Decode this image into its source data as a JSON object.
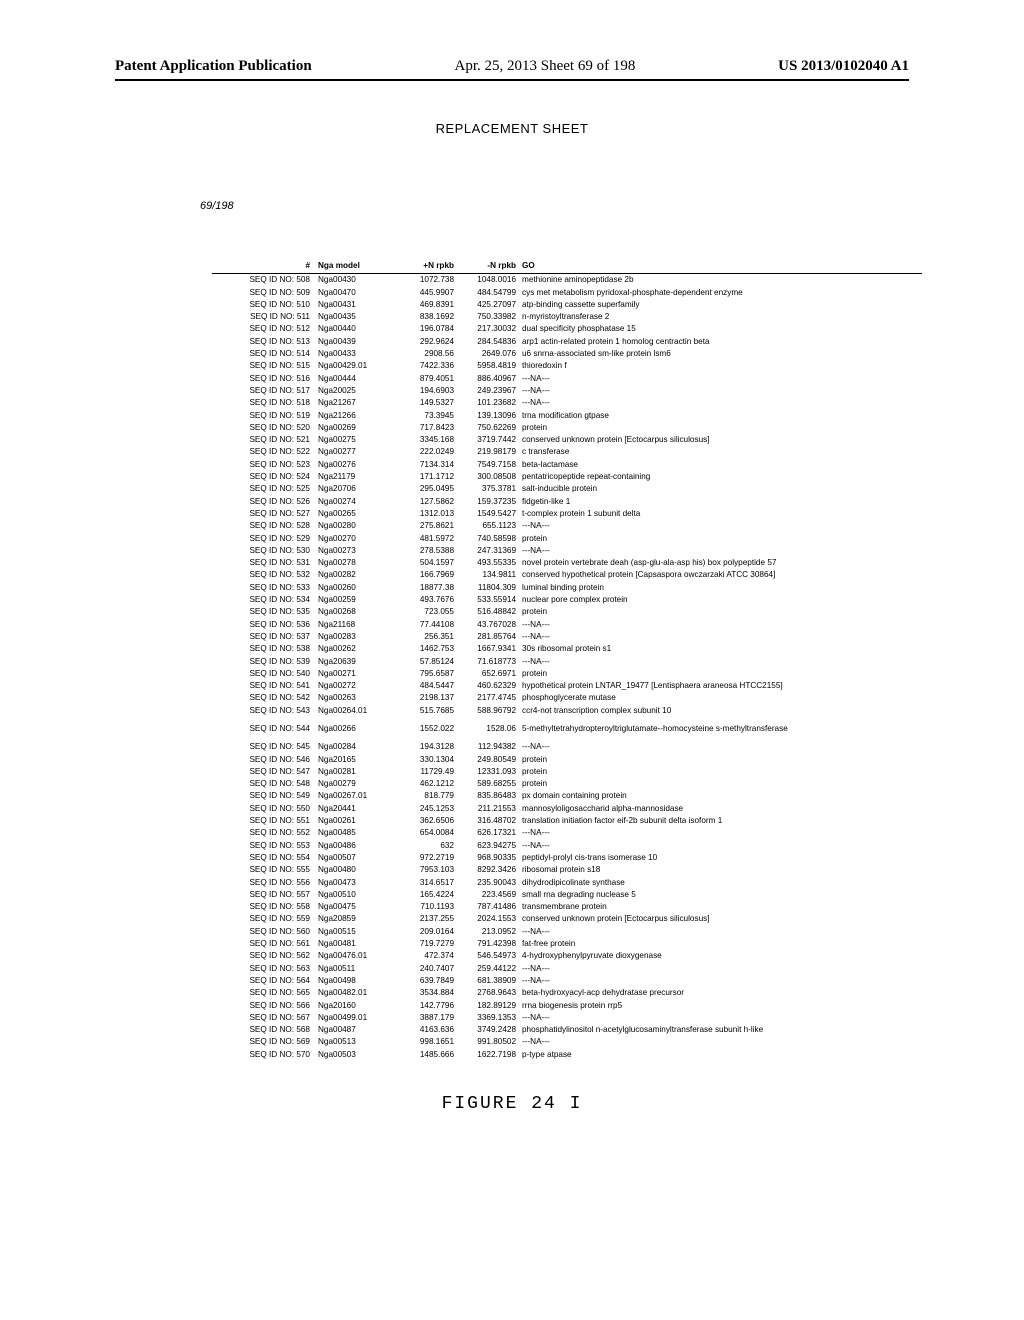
{
  "header": {
    "left": "Patent Application Publication",
    "mid": "Apr. 25, 2013  Sheet 69 of 198",
    "right": "US 2013/0102040 A1"
  },
  "replacement": "REPLACEMENT SHEET",
  "sheetnum": "69/198",
  "figure": "FIGURE 24 I",
  "thead": {
    "seq": "#",
    "model": "Nga model",
    "n1": "+N rpkb",
    "n2": "-N rpkb",
    "go": "GO"
  },
  "rows": [
    {
      "seq": "SEQ ID NO: 508",
      "model": "Nga00430",
      "n1": "1072.738",
      "n2": "1048.0016",
      "go": "methionine aminopeptidase 2b"
    },
    {
      "seq": "SEQ ID NO: 509",
      "model": "Nga00470",
      "n1": "445.9907",
      "n2": "484.54799",
      "go": "cys met metabolism pyridoxal-phosphate-dependent enzyme"
    },
    {
      "seq": "SEQ ID NO: 510",
      "model": "Nga00431",
      "n1": "469.8391",
      "n2": "425.27097",
      "go": "atp-binding cassette superfamily"
    },
    {
      "seq": "SEQ ID NO: 511",
      "model": "Nga00435",
      "n1": "838.1692",
      "n2": "750.33982",
      "go": "n-myristoyltransferase 2"
    },
    {
      "seq": "SEQ ID NO: 512",
      "model": "Nga00440",
      "n1": "196.0784",
      "n2": "217.30032",
      "go": "dual specificity phosphatase 15"
    },
    {
      "seq": "SEQ ID NO: 513",
      "model": "Nga00439",
      "n1": "292.9624",
      "n2": "284.54836",
      "go": "arp1 actin-related protein 1 homolog centractin beta"
    },
    {
      "seq": "SEQ ID NO: 514",
      "model": "Nga00433",
      "n1": "2908.56",
      "n2": "2649.076",
      "go": "u6 snrna-associated sm-like protein lsm6"
    },
    {
      "seq": "SEQ ID NO: 515",
      "model": "Nga00429.01",
      "n1": "7422.336",
      "n2": "5958.4819",
      "go": "thioredoxin f"
    },
    {
      "seq": "SEQ ID NO: 516",
      "model": "Nga00444",
      "n1": "879.4051",
      "n2": "886.40967",
      "go": "---NA---"
    },
    {
      "seq": "SEQ ID NO: 517",
      "model": "Nga20025",
      "n1": "194.6903",
      "n2": "249.23967",
      "go": "---NA---"
    },
    {
      "seq": "SEQ ID NO: 518",
      "model": "Nga21267",
      "n1": "149.5327",
      "n2": "101.23682",
      "go": "---NA---"
    },
    {
      "seq": "SEQ ID NO: 519",
      "model": "Nga21266",
      "n1": "73.3945",
      "n2": "139.13096",
      "go": "trna modification gtpase"
    },
    {
      "seq": "SEQ ID NO: 520",
      "model": "Nga00269",
      "n1": "717.8423",
      "n2": "750.62269",
      "go": "protein"
    },
    {
      "seq": "SEQ ID NO: 521",
      "model": "Nga00275",
      "n1": "3345.168",
      "n2": "3719.7442",
      "go": "conserved unknown protein [Ectocarpus siliculosus]"
    },
    {
      "seq": "SEQ ID NO: 522",
      "model": "Nga00277",
      "n1": "222.0249",
      "n2": "219.98179",
      "go": "c transferase"
    },
    {
      "seq": "SEQ ID NO: 523",
      "model": "Nga00276",
      "n1": "7134.314",
      "n2": "7549.7158",
      "go": "beta-lactamase"
    },
    {
      "seq": "SEQ ID NO: 524",
      "model": "Nga21179",
      "n1": "171.1712",
      "n2": "300.08508",
      "go": "pentatricopeptide repeat-containing"
    },
    {
      "seq": "SEQ ID NO: 525",
      "model": "Nga20706",
      "n1": "295.0495",
      "n2": "375.3781",
      "go": "salt-inducible protein"
    },
    {
      "seq": "SEQ ID NO: 526",
      "model": "Nga00274",
      "n1": "127.5862",
      "n2": "159.37235",
      "go": "fidgetin-like 1"
    },
    {
      "seq": "SEQ ID NO: 527",
      "model": "Nga00265",
      "n1": "1312.013",
      "n2": "1549.5427",
      "go": "t-complex protein 1 subunit delta"
    },
    {
      "seq": "SEQ ID NO: 528",
      "model": "Nga00280",
      "n1": "275.8621",
      "n2": "655.1123",
      "go": "---NA---"
    },
    {
      "seq": "SEQ ID NO: 529",
      "model": "Nga00270",
      "n1": "481.5972",
      "n2": "740.58598",
      "go": "protein"
    },
    {
      "seq": "SEQ ID NO: 530",
      "model": "Nga00273",
      "n1": "278.5388",
      "n2": "247.31369",
      "go": "---NA---"
    },
    {
      "seq": "SEQ ID NO: 531",
      "model": "Nga00278",
      "n1": "504.1597",
      "n2": "493.55335",
      "go": "novel protein vertebrate deah (asp-glu-ala-asp his) box polypeptide 57"
    },
    {
      "seq": "SEQ ID NO: 532",
      "model": "Nga00282",
      "n1": "166.7969",
      "n2": "134.9811",
      "go": "conserved hypothetical protein [Capsaspora owczarzaki ATCC 30864]"
    },
    {
      "seq": "SEQ ID NO: 533",
      "model": "Nga00260",
      "n1": "18877.38",
      "n2": "11804.309",
      "go": "luminal binding protein"
    },
    {
      "seq": "SEQ ID NO: 534",
      "model": "Nga00259",
      "n1": "493.7676",
      "n2": "533.55914",
      "go": "nuclear pore complex protein"
    },
    {
      "seq": "SEQ ID NO: 535",
      "model": "Nga00268",
      "n1": "723.055",
      "n2": "516.48842",
      "go": "protein"
    },
    {
      "seq": "SEQ ID NO: 536",
      "model": "Nga21168",
      "n1": "77.44108",
      "n2": "43.767028",
      "go": "---NA---"
    },
    {
      "seq": "SEQ ID NO: 537",
      "model": "Nga00283",
      "n1": "256.351",
      "n2": "281.85764",
      "go": "---NA---"
    },
    {
      "seq": "SEQ ID NO: 538",
      "model": "Nga00262",
      "n1": "1462.753",
      "n2": "1667.9341",
      "go": "30s ribosomal protein s1"
    },
    {
      "seq": "SEQ ID NO: 539",
      "model": "Nga20639",
      "n1": "57.85124",
      "n2": "71.618773",
      "go": "---NA---"
    },
    {
      "seq": "SEQ ID NO: 540",
      "model": "Nga00271",
      "n1": "795.6587",
      "n2": "652.6971",
      "go": "protein"
    },
    {
      "seq": "SEQ ID NO: 541",
      "model": "Nga00272",
      "n1": "484.5447",
      "n2": "460.62329",
      "go": "hypothetical protein LNTAR_19477 [Lentisphaera araneosa HTCC2155]"
    },
    {
      "seq": "SEQ ID NO: 542",
      "model": "Nga00263",
      "n1": "2198.137",
      "n2": "2177.4745",
      "go": "phosphoglycerate mutase"
    },
    {
      "seq": "SEQ ID NO: 543",
      "model": "Nga00264.01",
      "n1": "515.7685",
      "n2": "588.96792",
      "go": "ccr4-not transcription complex subunit 10"
    },
    {
      "seq": "SEQ ID NO: 544",
      "model": "Nga00266",
      "n1": "1552.022",
      "n2": "1528.06",
      "go": "5-methyltetrahydropteroyltriglutamate--homocysteine s-methyltransferase",
      "gap": true
    },
    {
      "seq": "SEQ ID NO: 545",
      "model": "Nga00284",
      "n1": "194.3128",
      "n2": "112.94382",
      "go": "---NA---"
    },
    {
      "seq": "SEQ ID NO: 546",
      "model": "Nga20165",
      "n1": "330.1304",
      "n2": "249.80549",
      "go": "protein"
    },
    {
      "seq": "SEQ ID NO: 547",
      "model": "Nga00281",
      "n1": "11729.49",
      "n2": "12331.093",
      "go": "protein"
    },
    {
      "seq": "SEQ ID NO: 548",
      "model": "Nga00279",
      "n1": "462.1212",
      "n2": "589.68255",
      "go": "protein"
    },
    {
      "seq": "SEQ ID NO: 549",
      "model": "Nga00267.01",
      "n1": "818.779",
      "n2": "835.86483",
      "go": "px domain containing protein"
    },
    {
      "seq": "SEQ ID NO: 550",
      "model": "Nga20441",
      "n1": "245.1253",
      "n2": "211.21553",
      "go": "mannosyloligosaccharid alpha-mannosidase"
    },
    {
      "seq": "SEQ ID NO: 551",
      "model": "Nga00261",
      "n1": "362.6506",
      "n2": "316.48702",
      "go": "translation initiation factor eif-2b subunit delta isoform 1"
    },
    {
      "seq": "SEQ ID NO: 552",
      "model": "Nga00485",
      "n1": "654.0084",
      "n2": "626.17321",
      "go": "---NA---"
    },
    {
      "seq": "SEQ ID NO: 553",
      "model": "Nga00486",
      "n1": "632",
      "n2": "623.94275",
      "go": "---NA---"
    },
    {
      "seq": "SEQ ID NO: 554",
      "model": "Nga00507",
      "n1": "972.2719",
      "n2": "968.90335",
      "go": "peptidyl-prolyl cis-trans isomerase 10"
    },
    {
      "seq": "SEQ ID NO: 555",
      "model": "Nga00480",
      "n1": "7953.103",
      "n2": "8292.3426",
      "go": "ribosomal protein s18"
    },
    {
      "seq": "SEQ ID NO: 556",
      "model": "Nga00473",
      "n1": "314.6517",
      "n2": "235.90043",
      "go": "dihydrodipicolinate synthase"
    },
    {
      "seq": "SEQ ID NO: 557",
      "model": "Nga00510",
      "n1": "165.4224",
      "n2": "223.4569",
      "go": "small rna degrading nuclease 5"
    },
    {
      "seq": "SEQ ID NO: 558",
      "model": "Nga00475",
      "n1": "710.1193",
      "n2": "787.41486",
      "go": "transmembrane protein"
    },
    {
      "seq": "SEQ ID NO: 559",
      "model": "Nga20859",
      "n1": "2137.255",
      "n2": "2024.1553",
      "go": "conserved unknown protein [Ectocarpus siliculosus]"
    },
    {
      "seq": "SEQ ID NO: 560",
      "model": "Nga00515",
      "n1": "209.0164",
      "n2": "213.0952",
      "go": "---NA---"
    },
    {
      "seq": "SEQ ID NO: 561",
      "model": "Nga00481",
      "n1": "719.7279",
      "n2": "791.42398",
      "go": "fat-free protein"
    },
    {
      "seq": "SEQ ID NO: 562",
      "model": "Nga00476.01",
      "n1": "472.374",
      "n2": "546.54973",
      "go": "4-hydroxyphenylpyruvate dioxygenase"
    },
    {
      "seq": "SEQ ID NO: 563",
      "model": "Nga00511",
      "n1": "240.7407",
      "n2": "259.44122",
      "go": "---NA---"
    },
    {
      "seq": "SEQ ID NO: 564",
      "model": "Nga00498",
      "n1": "639.7849",
      "n2": "681.38909",
      "go": "---NA---"
    },
    {
      "seq": "SEQ ID NO: 565",
      "model": "Nga00482.01",
      "n1": "3534.884",
      "n2": "2768.9643",
      "go": "beta-hydroxyacyl-acp dehydratase precursor"
    },
    {
      "seq": "SEQ ID NO: 566",
      "model": "Nga20160",
      "n1": "142.7796",
      "n2": "182.89129",
      "go": "rrna biogenesis protein rrp5"
    },
    {
      "seq": "SEQ ID NO: 567",
      "model": "Nga00499.01",
      "n1": "3887.179",
      "n2": "3369.1353",
      "go": "---NA---"
    },
    {
      "seq": "SEQ ID NO: 568",
      "model": "Nga00487",
      "n1": "4163.636",
      "n2": "3749.2428",
      "go": "phosphatidylinositol n-acetylglucosaminyltransferase subunit h-like"
    },
    {
      "seq": "SEQ ID NO: 569",
      "model": "Nga00513",
      "n1": "998.1651",
      "n2": "991.80502",
      "go": "---NA---"
    },
    {
      "seq": "SEQ ID NO: 570",
      "model": "Nga00503",
      "n1": "1485.666",
      "n2": "1622.7198",
      "go": "p-type atpase"
    }
  ]
}
